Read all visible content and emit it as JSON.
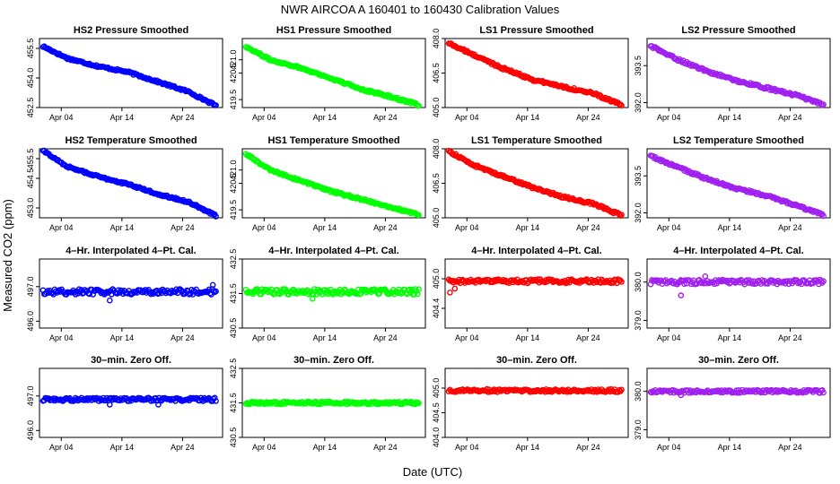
{
  "figure": {
    "title": "NWR   AIRCOA A   160401 to 160430   Calibration Values",
    "ylabel": "Measured CO2 (ppm)",
    "xlabel": "Date (UTC)"
  },
  "colors": {
    "HS2": "#0000ff",
    "HS1": "#00ff00",
    "LS1": "#ff0000",
    "LS2": "#a020f0"
  },
  "x_axis": {
    "unit": "day of April 2016",
    "range": [
      1,
      30
    ],
    "ticks": [
      4,
      14,
      24
    ],
    "tick_labels": [
      "Apr 04",
      "Apr 14",
      "Apr 24"
    ]
  },
  "chart_data": [
    {
      "type": "scatter",
      "row": 0,
      "col": 0,
      "tank": "HS2",
      "title": "HS2 Pressure Smoothed",
      "ylim": [
        452.5,
        456.0
      ],
      "yticks": [
        452.5,
        454.0,
        455.5
      ],
      "ytick_labels": [
        "452.5",
        "454.0",
        "455.5"
      ],
      "x": [
        1,
        5,
        10,
        15,
        20,
        25,
        29.5
      ],
      "y": [
        455.6,
        455.0,
        454.6,
        454.3,
        453.8,
        453.3,
        452.6
      ],
      "noise": 0.05,
      "outliers": []
    },
    {
      "type": "scatter",
      "row": 0,
      "col": 1,
      "tank": "HS1",
      "title": "HS1 Pressure Smoothed",
      "ylim": [
        419.2,
        421.8
      ],
      "yticks": [
        419.5,
        420.5,
        421.0
      ],
      "ytick_labels": [
        "419.5",
        "420.5",
        "421.0"
      ],
      "x": [
        1,
        5,
        10,
        15,
        20,
        25,
        29.5
      ],
      "y": [
        421.5,
        421.0,
        420.7,
        420.3,
        419.9,
        419.6,
        419.3
      ],
      "noise": 0.04,
      "outliers": []
    },
    {
      "type": "scatter",
      "row": 0,
      "col": 2,
      "tank": "LS1",
      "title": "LS1 Pressure Smoothed",
      "ylim": [
        405.0,
        408.0
      ],
      "yticks": [
        405.0,
        406.5,
        408.0
      ],
      "ytick_labels": [
        "405.0",
        "406.5",
        "408.0"
      ],
      "x": [
        1,
        5,
        10,
        15,
        20,
        25,
        29.5
      ],
      "y": [
        407.8,
        407.3,
        406.7,
        406.2,
        405.9,
        405.6,
        405.1
      ],
      "noise": 0.05,
      "outliers": []
    },
    {
      "type": "scatter",
      "row": 0,
      "col": 3,
      "tank": "LS2",
      "title": "LS2 Pressure Smoothed",
      "ylim": [
        391.8,
        394.6
      ],
      "yticks": [
        392.0,
        393.5
      ],
      "ytick_labels": [
        "392.0",
        "393.5"
      ],
      "x": [
        1,
        5,
        10,
        15,
        20,
        25,
        29.5
      ],
      "y": [
        394.3,
        393.8,
        393.3,
        392.9,
        392.6,
        392.3,
        391.9
      ],
      "noise": 0.05,
      "outliers": []
    },
    {
      "type": "scatter",
      "row": 1,
      "col": 0,
      "tank": "HS2",
      "title": "HS2 Temperature Smoothed",
      "ylim": [
        452.5,
        456.0
      ],
      "yticks": [
        453.0,
        454.5,
        455.5
      ],
      "ytick_labels": [
        "453.0",
        "454.5",
        "455.5"
      ],
      "x": [
        1,
        5,
        10,
        15,
        20,
        25,
        29.5
      ],
      "y": [
        455.9,
        455.1,
        454.6,
        454.2,
        453.7,
        453.3,
        452.6
      ],
      "noise": 0.05,
      "outliers": []
    },
    {
      "type": "scatter",
      "row": 1,
      "col": 1,
      "tank": "HS1",
      "title": "HS1 Temperature Smoothed",
      "ylim": [
        419.2,
        421.8
      ],
      "yticks": [
        419.5,
        420.5,
        421.0
      ],
      "ytick_labels": [
        "419.5",
        "420.5",
        "421.0"
      ],
      "x": [
        1,
        5,
        10,
        15,
        20,
        25,
        29.5
      ],
      "y": [
        421.6,
        421.0,
        420.6,
        420.2,
        419.9,
        419.6,
        419.3
      ],
      "noise": 0.04,
      "outliers": []
    },
    {
      "type": "scatter",
      "row": 1,
      "col": 2,
      "tank": "LS1",
      "title": "LS1 Temperature Smoothed",
      "ylim": [
        405.0,
        408.0
      ],
      "yticks": [
        405.0,
        406.5,
        408.0
      ],
      "ytick_labels": [
        "405.0",
        "406.5",
        "408.0"
      ],
      "x": [
        1,
        5,
        10,
        15,
        20,
        25,
        29.5
      ],
      "y": [
        407.9,
        407.3,
        406.8,
        406.3,
        405.9,
        405.6,
        405.1
      ],
      "noise": 0.05,
      "outliers": []
    },
    {
      "type": "scatter",
      "row": 1,
      "col": 3,
      "tank": "LS2",
      "title": "LS2 Temperature Smoothed",
      "ylim": [
        391.8,
        394.6
      ],
      "yticks": [
        392.0,
        393.5
      ],
      "ytick_labels": [
        "392.0",
        "393.5"
      ],
      "x": [
        1,
        5,
        10,
        15,
        20,
        25,
        29.5
      ],
      "y": [
        394.3,
        393.9,
        393.4,
        393.0,
        392.7,
        392.3,
        391.9
      ],
      "noise": 0.05,
      "outliers": []
    },
    {
      "type": "scatter",
      "row": 2,
      "col": 0,
      "tank": "HS2",
      "title": "4–Hr. Interpolated 4–Pt. Cal.",
      "ylim": [
        495.8,
        497.8
      ],
      "yticks": [
        496.0,
        497.0
      ],
      "ytick_labels": [
        "496.0",
        "497.0"
      ],
      "x": [
        1,
        29.5
      ],
      "y": [
        496.85,
        496.85
      ],
      "noise": 0.08,
      "outliers": [
        [
          12,
          496.6
        ],
        [
          29,
          497.05
        ]
      ]
    },
    {
      "type": "scatter",
      "row": 2,
      "col": 1,
      "tank": "HS1",
      "title": "4–Hr. Interpolated 4–Pt. Cal.",
      "ylim": [
        430.5,
        432.5
      ],
      "yticks": [
        430.5,
        431.5,
        432.5
      ],
      "ytick_labels": [
        "430.5",
        "431.5",
        "432.5"
      ],
      "x": [
        1,
        29.5
      ],
      "y": [
        431.55,
        431.55
      ],
      "noise": 0.08,
      "outliers": [
        [
          12,
          431.35
        ]
      ]
    },
    {
      "type": "scatter",
      "row": 2,
      "col": 2,
      "tank": "LS1",
      "title": "4–Hr. Interpolated 4–Pt. Cal.",
      "ylim": [
        404.0,
        405.4
      ],
      "yticks": [
        404.4,
        405.0
      ],
      "ytick_labels": [
        "404.4",
        "405.0"
      ],
      "x": [
        1,
        29.5
      ],
      "y": [
        404.95,
        404.95
      ],
      "noise": 0.04,
      "outliers": [
        [
          1.2,
          404.72
        ],
        [
          2,
          404.8
        ]
      ]
    },
    {
      "type": "scatter",
      "row": 2,
      "col": 3,
      "tank": "LS2",
      "title": "4–Hr. Interpolated 4–Pt. Cal.",
      "ylim": [
        378.8,
        380.6
      ],
      "yticks": [
        379.0,
        380.0
      ],
      "ytick_labels": [
        "379.0",
        "380.0"
      ],
      "x": [
        1,
        29.5
      ],
      "y": [
        380.0,
        380.0
      ],
      "noise": 0.06,
      "outliers": [
        [
          6,
          379.65
        ],
        [
          10,
          380.15
        ]
      ]
    },
    {
      "type": "scatter",
      "row": 3,
      "col": 0,
      "tank": "HS2",
      "title": "30–min. Zero Off.",
      "ylim": [
        495.8,
        497.8
      ],
      "yticks": [
        496.0,
        497.0
      ],
      "ytick_labels": [
        "496.0",
        "497.0"
      ],
      "x": [
        1,
        29.5
      ],
      "y": [
        496.9,
        496.9
      ],
      "noise": 0.05,
      "outliers": [
        [
          12,
          496.75
        ],
        [
          20,
          496.75
        ]
      ]
    },
    {
      "type": "scatter",
      "row": 3,
      "col": 1,
      "tank": "HS1",
      "title": "30–min. Zero Off.",
      "ylim": [
        430.5,
        432.5
      ],
      "yticks": [
        430.5,
        431.5,
        432.5
      ],
      "ytick_labels": [
        "430.5",
        "431.5",
        "432.5"
      ],
      "x": [
        1,
        29.5
      ],
      "y": [
        431.5,
        431.5
      ],
      "noise": 0.04,
      "outliers": []
    },
    {
      "type": "scatter",
      "row": 3,
      "col": 2,
      "tank": "LS1",
      "title": "30–min. Zero Off.",
      "ylim": [
        404.0,
        405.4
      ],
      "yticks": [
        404.0,
        404.5,
        405.0
      ],
      "ytick_labels": [
        "404.0",
        "404.5",
        "405.0"
      ],
      "x": [
        1,
        29.5
      ],
      "y": [
        404.95,
        404.95
      ],
      "noise": 0.03,
      "outliers": []
    },
    {
      "type": "scatter",
      "row": 3,
      "col": 3,
      "tank": "LS2",
      "title": "30–min. Zero Off.",
      "ylim": [
        378.8,
        380.6
      ],
      "yticks": [
        379.0,
        380.0
      ],
      "ytick_labels": [
        "379.0",
        "380.0"
      ],
      "x": [
        1,
        29.5
      ],
      "y": [
        380.0,
        380.0
      ],
      "noise": 0.04,
      "outliers": [
        [
          6,
          379.9
        ]
      ]
    }
  ]
}
